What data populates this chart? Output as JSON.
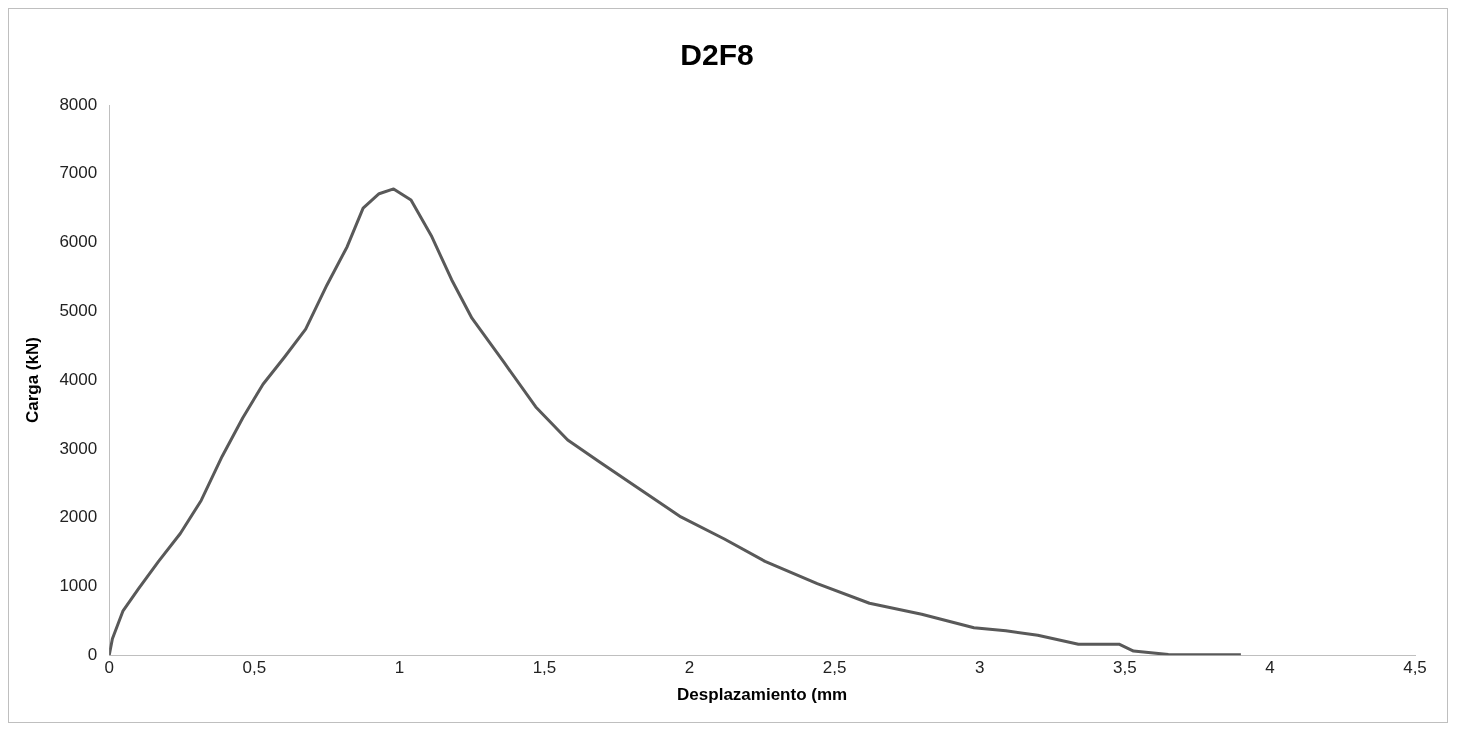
{
  "chart_data": {
    "type": "line",
    "title": "D2F8",
    "xlabel": "Desplazamiento (mm",
    "ylabel": "Carga (kN)",
    "series": [
      {
        "color": "#595959",
        "x": [
          0,
          0.011,
          0.047,
          0.1,
          0.17,
          0.245,
          0.317,
          0.389,
          0.46,
          0.53,
          0.605,
          0.677,
          0.75,
          0.82,
          0.875,
          0.93,
          0.98,
          1.04,
          1.11,
          1.18,
          1.25,
          1.36,
          1.47,
          1.58,
          1.69,
          1.83,
          1.97,
          2.12,
          2.26,
          2.44,
          2.62,
          2.8,
          2.98,
          3.09,
          3.2,
          3.34,
          3.48,
          3.53,
          3.65,
          3.9
        ],
        "values": [
          0,
          240,
          640,
          960,
          1365,
          1770,
          2250,
          2890,
          3450,
          3940,
          4340,
          4740,
          5380,
          5940,
          6500,
          6710,
          6780,
          6620,
          6100,
          5460,
          4900,
          4260,
          3610,
          3130,
          2810,
          2410,
          2010,
          1690,
          1365,
          1040,
          755,
          595,
          400,
          355,
          290,
          160,
          160,
          60,
          10,
          5
        ]
      }
    ],
    "xlim": [
      0,
      4.5
    ],
    "xticks": [
      0,
      {
        "value": 0.5,
        "label": "0,5"
      },
      1,
      {
        "value": 1.5,
        "label": "1,5"
      },
      2,
      {
        "value": 2.5,
        "label": "2,5"
      },
      3,
      {
        "value": 3.5,
        "label": "3,5"
      },
      4,
      {
        "value": 4.5,
        "label": "4,5"
      }
    ],
    "ylim": [
      0,
      8000
    ],
    "yticks": [
      0,
      1000,
      2000,
      3000,
      4000,
      5000,
      6000,
      7000,
      8000
    ],
    "grid": false,
    "legend": false,
    "marker": "none",
    "line_style": "solid"
  }
}
